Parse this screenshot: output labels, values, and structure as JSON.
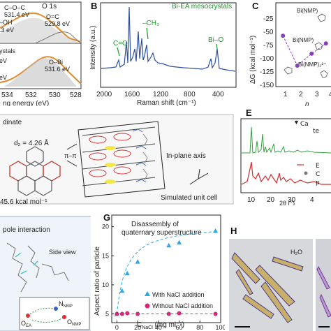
{
  "panel_a": {
    "title": "O 1s",
    "peaks_top": [
      "C–O–C\n531.4 eV",
      "O=C\n529.8 eV",
      "–OH\n.3 eV"
    ],
    "peaks_top_labels": {
      "coc": "C–O–C",
      "coc_ev": "531.4 eV",
      "oc": "O=C",
      "oc_ev": "529.8 eV",
      "oh": "–OH",
      "oh_ev": ".3 eV"
    },
    "bottom_labels": {
      "sample": "ystals",
      "obi": "O–Bi",
      "obi_ev": "531.6 eV",
      "ev_left1": "eV",
      "ev_left2": "eV"
    },
    "ticks": [
      "534",
      "532",
      "530",
      "528"
    ],
    "xlabel": "ng energy (eV)"
  },
  "panel_b": {
    "letter": "B",
    "title": "Bi-EA mesocrystals",
    "ylabel": "Intensity (a.u.)",
    "xlabel": "Raman shift (cm⁻¹)",
    "ticks": [
      "2000",
      "1600",
      "1200",
      "800",
      "400"
    ],
    "annotations": {
      "co": "C=O",
      "ch3": "–CH₃",
      "bio": "Bi–O"
    }
  },
  "panel_c": {
    "letter": "C",
    "ylabel": "ΔG (kcal mol⁻¹)",
    "yticks": [
      "-25",
      "-50",
      "-75",
      "-100",
      "-125",
      "-150"
    ],
    "xticks": [
      "1",
      "2",
      "3",
      "4"
    ],
    "xlabel": "n",
    "labels": {
      "nmp1": "Bi(NMP)",
      "nmp2": "Bi(NMP)₂²⁺",
      "nmp3": "Bi(NMP)"
    }
  },
  "panel_d": {
    "header": "dinate",
    "distance": "d₂ = 4.26 Å",
    "pipi": "π–π",
    "energy": "45.6 kcal mol⁻¹",
    "axis": "In-plane axis",
    "cell": "Simulated unit cell"
  },
  "panel_e": {
    "letter": "E",
    "legend_top": {
      "a": "Ca",
      "b": "te"
    },
    "legend_bottom": {
      "a": "E",
      "b": "C",
      "c": "p"
    },
    "ticks": [
      "10",
      "20",
      "30",
      "4"
    ],
    "xlabel": "2θ (°)"
  },
  "panel_f": {
    "title": "pole interaction",
    "side": "Side view",
    "labels": {
      "oea": "O",
      "oea_sub": "EA",
      "nnmp": "N",
      "nnmp_sub": "NMP",
      "onmp": "O",
      "onmp_sub": "NMP"
    }
  },
  "panel_g": {
    "letter": "G",
    "title_line1": "Disassembly of",
    "title_line2": "quaternary superstructure",
    "ylabel": "Aspect ratio of particle",
    "xlabel": "C",
    "xlabel_sub": "NaCl",
    "xlabel_unit": " (mg ml⁻¹)",
    "legend": {
      "with": "With NaCl addition",
      "without": "Without NaCl addition"
    },
    "yticks": [
      "5",
      "10",
      "15",
      "20"
    ],
    "xticks": [
      "0",
      "20",
      "40",
      "60",
      "80",
      "100"
    ]
  },
  "panel_h": {
    "letter": "H",
    "label": "H₂O"
  },
  "chart_data": [
    {
      "type": "line",
      "title": "Disassembly of quaternary superstructure",
      "xlabel": "C NaCl (mg ml⁻¹)",
      "ylabel": "Aspect ratio of particle",
      "xlim": [
        -5,
        100
      ],
      "ylim": [
        3.5,
        22
      ],
      "legend": "bottom-right",
      "series": [
        {
          "name": "With NaCl addition",
          "color": "#2ea8e0",
          "marker": "triangle",
          "x": [
            0,
            5,
            10,
            20,
            50,
            60,
            95
          ],
          "y": [
            5,
            9,
            12,
            14,
            16.8,
            17.3,
            19.3
          ]
        },
        {
          "name": "Without NaCl addition",
          "color": "#d9267a",
          "marker": "circle",
          "x": [
            0,
            5,
            10,
            20,
            50,
            60,
            95
          ],
          "y": [
            5,
            5,
            5.1,
            5,
            5,
            5.1,
            5
          ]
        }
      ]
    },
    {
      "type": "scatter",
      "xlabel": "n",
      "ylabel": "ΔG (kcal mol⁻¹)",
      "xlim": [
        0.5,
        4.5
      ],
      "ylim": [
        -160,
        -20
      ],
      "series": [
        {
          "color": "#8a3fb8",
          "x": [
            1,
            2,
            3,
            4
          ],
          "y": [
            -75,
            -125,
            -105,
            -88
          ]
        }
      ]
    }
  ]
}
